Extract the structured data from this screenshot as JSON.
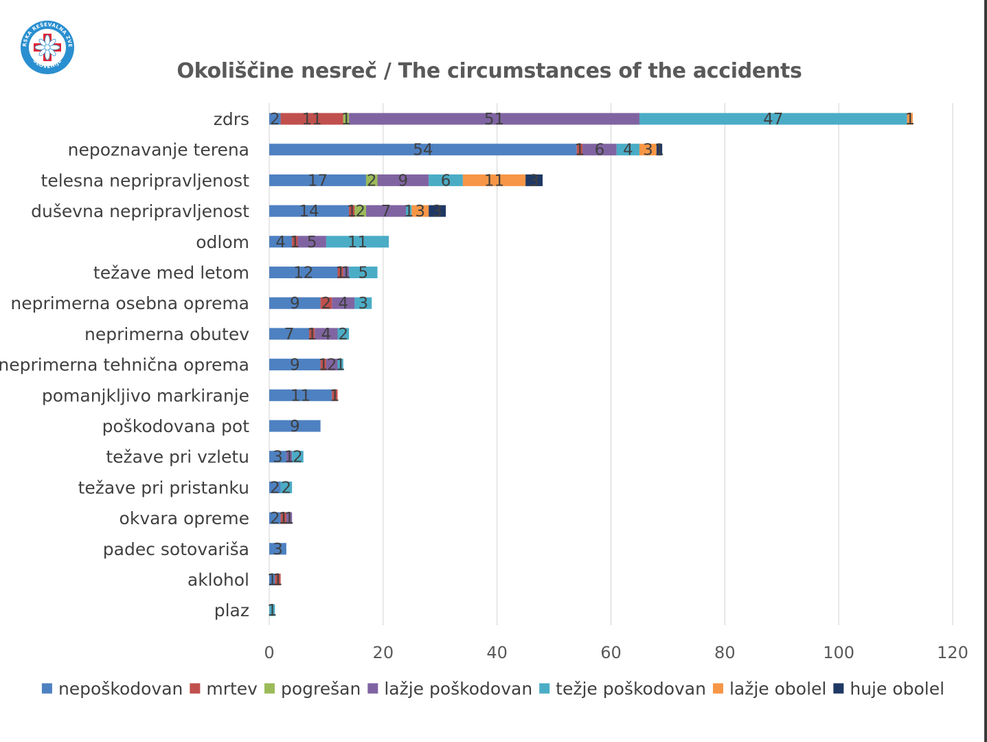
{
  "logo": {
    "top_text": "GORSKA REŠEVALNA ZVEZA",
    "bottom_text": "SLOVENIJE",
    "icon": "edelweiss-cross-icon",
    "colors": {
      "ring": "#2a8fd0",
      "cross": "#e32636"
    }
  },
  "chart_data": {
    "type": "bar",
    "orientation": "horizontal",
    "stacked": true,
    "title": "Okoliščine nesreč / The circumstances of the accidents",
    "xlabel": "",
    "ylabel": "",
    "xlim": [
      0,
      120
    ],
    "xticks": [
      0,
      20,
      40,
      60,
      80,
      100,
      120
    ],
    "grid": true,
    "legend_position": "bottom",
    "categories": [
      "zdrs",
      "nepoznavanje terena",
      "telesna nepripravljenost",
      "duševna nepripravljenost",
      "odlom",
      "težave med letom",
      "neprimerna osebna oprema",
      "neprimerna obutev",
      "neprimerna tehnična oprema",
      "pomanjkljivo markiranje",
      "poškodovana pot",
      "težave pri vzletu",
      "težave pri pristanku",
      "okvara opreme",
      "padec sotovariša",
      "aklohol",
      "plaz"
    ],
    "series": [
      {
        "name": "nepoškodovan",
        "color": "#4e81c1",
        "values": [
          2,
          54,
          17,
          14,
          4,
          12,
          9,
          7,
          9,
          11,
          9,
          3,
          2,
          2,
          3,
          1,
          0
        ]
      },
      {
        "name": "mrtev",
        "color": "#c0504d",
        "values": [
          11,
          1,
          0,
          1,
          1,
          1,
          2,
          1,
          1,
          1,
          0,
          0,
          0,
          1,
          0,
          1,
          0
        ]
      },
      {
        "name": "pogrešan",
        "color": "#9bbb59",
        "values": [
          1,
          0,
          2,
          2,
          0,
          0,
          0,
          0,
          0,
          0,
          0,
          0,
          0,
          0,
          0,
          0,
          0
        ]
      },
      {
        "name": "lažje poškodovan",
        "color": "#8064a2",
        "values": [
          51,
          6,
          9,
          7,
          5,
          1,
          4,
          4,
          2,
          0,
          0,
          1,
          0,
          1,
          0,
          0,
          0
        ]
      },
      {
        "name": "težje poškodovan",
        "color": "#4bacc6",
        "values": [
          47,
          4,
          6,
          1,
          11,
          5,
          3,
          2,
          1,
          0,
          0,
          2,
          2,
          0,
          0,
          0,
          1
        ]
      },
      {
        "name": "lažje obolel",
        "color": "#f79646",
        "values": [
          1,
          3,
          11,
          3,
          0,
          0,
          0,
          0,
          0,
          0,
          0,
          0,
          0,
          0,
          0,
          0,
          0
        ]
      },
      {
        "name": "huje obolel",
        "color": "#1f3864",
        "values": [
          0,
          1,
          3,
          3,
          0,
          0,
          0,
          0,
          0,
          0,
          0,
          0,
          0,
          0,
          0,
          0,
          0
        ]
      }
    ]
  }
}
